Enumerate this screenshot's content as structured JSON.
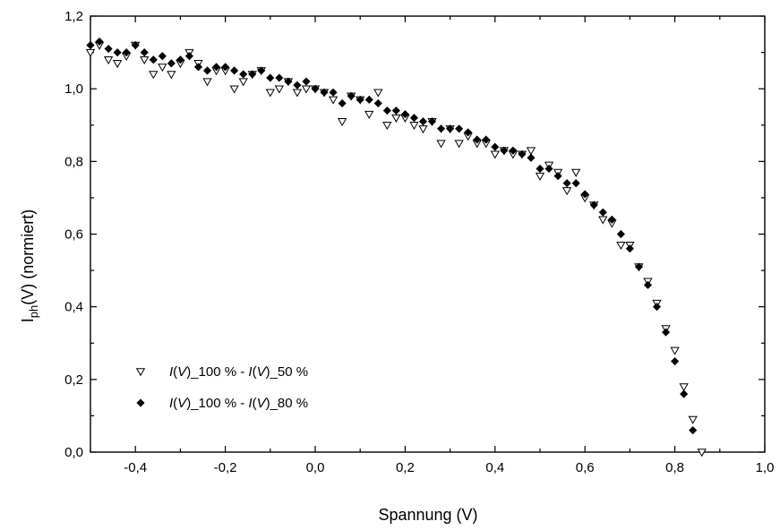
{
  "chart_data": {
    "type": "scatter",
    "title": "",
    "xlabel": "Spannung (V)",
    "ylabel": {
      "main": "I",
      "sub": "ph",
      "rest": "(V) (normiert)"
    },
    "xlim": [
      -0.5,
      1.0
    ],
    "ylim": [
      0.0,
      1.2
    ],
    "xticks": [
      -0.4,
      -0.2,
      0.0,
      0.2,
      0.4,
      0.6,
      0.8,
      1.0
    ],
    "yticks": [
      0.0,
      0.2,
      0.4,
      0.6,
      0.8,
      1.0,
      1.2
    ],
    "xtick_labels": [
      "-0,4",
      "-0,2",
      "0,0",
      "0,2",
      "0,4",
      "0,6",
      "0,8",
      "1,0"
    ],
    "ytick_labels": [
      "0,0",
      "0,2",
      "0,4",
      "0,6",
      "0,8",
      "1,0",
      "1,2"
    ],
    "grid": false,
    "legend_position": "lower-left",
    "series": [
      {
        "name": "I(V)_100 % - I(V)_50 %",
        "legend_parts": [
          {
            "text": "I",
            "italic": true
          },
          {
            "text": "(",
            "italic": false
          },
          {
            "text": "V",
            "italic": true
          },
          {
            "text": ")_100 % - ",
            "italic": false
          },
          {
            "text": "I",
            "italic": true
          },
          {
            "text": "(",
            "italic": false
          },
          {
            "text": "V",
            "italic": true
          },
          {
            "text": ")_50 %",
            "italic": false
          }
        ],
        "marker": "triangle-down-open",
        "color": "#000000",
        "points": [
          [
            -0.5,
            1.1
          ],
          [
            -0.48,
            1.12
          ],
          [
            -0.46,
            1.08
          ],
          [
            -0.44,
            1.07
          ],
          [
            -0.42,
            1.09
          ],
          [
            -0.4,
            1.12
          ],
          [
            -0.38,
            1.08
          ],
          [
            -0.36,
            1.04
          ],
          [
            -0.34,
            1.06
          ],
          [
            -0.32,
            1.04
          ],
          [
            -0.3,
            1.07
          ],
          [
            -0.28,
            1.1
          ],
          [
            -0.26,
            1.07
          ],
          [
            -0.24,
            1.02
          ],
          [
            -0.22,
            1.05
          ],
          [
            -0.2,
            1.05
          ],
          [
            -0.18,
            1.0
          ],
          [
            -0.16,
            1.02
          ],
          [
            -0.14,
            1.04
          ],
          [
            -0.12,
            1.05
          ],
          [
            -0.1,
            0.99
          ],
          [
            -0.08,
            1.0
          ],
          [
            -0.06,
            1.02
          ],
          [
            -0.04,
            0.99
          ],
          [
            -0.02,
            1.0
          ],
          [
            0.0,
            1.0
          ],
          [
            0.02,
            0.99
          ],
          [
            0.04,
            0.97
          ],
          [
            0.06,
            0.91
          ],
          [
            0.08,
            0.98
          ],
          [
            0.1,
            0.97
          ],
          [
            0.12,
            0.93
          ],
          [
            0.14,
            0.99
          ],
          [
            0.16,
            0.9
          ],
          [
            0.18,
            0.92
          ],
          [
            0.2,
            0.92
          ],
          [
            0.22,
            0.9
          ],
          [
            0.24,
            0.89
          ],
          [
            0.26,
            0.91
          ],
          [
            0.28,
            0.85
          ],
          [
            0.3,
            0.89
          ],
          [
            0.32,
            0.85
          ],
          [
            0.34,
            0.87
          ],
          [
            0.36,
            0.85
          ],
          [
            0.38,
            0.85
          ],
          [
            0.4,
            0.82
          ],
          [
            0.42,
            0.83
          ],
          [
            0.44,
            0.82
          ],
          [
            0.46,
            0.82
          ],
          [
            0.48,
            0.83
          ],
          [
            0.5,
            0.76
          ],
          [
            0.52,
            0.79
          ],
          [
            0.54,
            0.77
          ],
          [
            0.56,
            0.72
          ],
          [
            0.58,
            0.77
          ],
          [
            0.6,
            0.7
          ],
          [
            0.62,
            0.68
          ],
          [
            0.64,
            0.64
          ],
          [
            0.66,
            0.63
          ],
          [
            0.68,
            0.57
          ],
          [
            0.7,
            0.57
          ],
          [
            0.72,
            0.51
          ],
          [
            0.74,
            0.47
          ],
          [
            0.76,
            0.41
          ],
          [
            0.78,
            0.34
          ],
          [
            0.8,
            0.28
          ],
          [
            0.82,
            0.18
          ],
          [
            0.84,
            0.09
          ],
          [
            0.86,
            0.0
          ]
        ]
      },
      {
        "name": "I(V)_100 % - I(V)_80 %",
        "legend_parts": [
          {
            "text": "I",
            "italic": true
          },
          {
            "text": "(",
            "italic": false
          },
          {
            "text": "V",
            "italic": true
          },
          {
            "text": ")_100 % - ",
            "italic": false
          },
          {
            "text": "I",
            "italic": true
          },
          {
            "text": "(",
            "italic": false
          },
          {
            "text": "V",
            "italic": true
          },
          {
            "text": ")_80 %",
            "italic": false
          }
        ],
        "marker": "diamond-filled",
        "color": "#000000",
        "points": [
          [
            -0.5,
            1.12
          ],
          [
            -0.48,
            1.13
          ],
          [
            -0.46,
            1.11
          ],
          [
            -0.44,
            1.1
          ],
          [
            -0.42,
            1.1
          ],
          [
            -0.4,
            1.12
          ],
          [
            -0.38,
            1.1
          ],
          [
            -0.36,
            1.08
          ],
          [
            -0.34,
            1.09
          ],
          [
            -0.32,
            1.07
          ],
          [
            -0.3,
            1.08
          ],
          [
            -0.28,
            1.09
          ],
          [
            -0.26,
            1.06
          ],
          [
            -0.24,
            1.05
          ],
          [
            -0.22,
            1.06
          ],
          [
            -0.2,
            1.06
          ],
          [
            -0.18,
            1.05
          ],
          [
            -0.16,
            1.04
          ],
          [
            -0.14,
            1.04
          ],
          [
            -0.12,
            1.05
          ],
          [
            -0.1,
            1.03
          ],
          [
            -0.08,
            1.03
          ],
          [
            -0.06,
            1.02
          ],
          [
            -0.04,
            1.01
          ],
          [
            -0.02,
            1.02
          ],
          [
            0.0,
            1.0
          ],
          [
            0.02,
            0.99
          ],
          [
            0.04,
            0.99
          ],
          [
            0.06,
            0.96
          ],
          [
            0.08,
            0.98
          ],
          [
            0.1,
            0.97
          ],
          [
            0.12,
            0.97
          ],
          [
            0.14,
            0.96
          ],
          [
            0.16,
            0.94
          ],
          [
            0.18,
            0.94
          ],
          [
            0.2,
            0.93
          ],
          [
            0.22,
            0.92
          ],
          [
            0.24,
            0.91
          ],
          [
            0.26,
            0.91
          ],
          [
            0.28,
            0.89
          ],
          [
            0.3,
            0.89
          ],
          [
            0.32,
            0.89
          ],
          [
            0.34,
            0.88
          ],
          [
            0.36,
            0.86
          ],
          [
            0.38,
            0.86
          ],
          [
            0.4,
            0.84
          ],
          [
            0.42,
            0.83
          ],
          [
            0.44,
            0.83
          ],
          [
            0.46,
            0.82
          ],
          [
            0.48,
            0.81
          ],
          [
            0.5,
            0.78
          ],
          [
            0.52,
            0.78
          ],
          [
            0.54,
            0.76
          ],
          [
            0.56,
            0.74
          ],
          [
            0.58,
            0.74
          ],
          [
            0.6,
            0.71
          ],
          [
            0.62,
            0.68
          ],
          [
            0.64,
            0.66
          ],
          [
            0.66,
            0.64
          ],
          [
            0.68,
            0.6
          ],
          [
            0.7,
            0.56
          ],
          [
            0.72,
            0.51
          ],
          [
            0.74,
            0.46
          ],
          [
            0.76,
            0.4
          ],
          [
            0.78,
            0.33
          ],
          [
            0.8,
            0.25
          ],
          [
            0.82,
            0.16
          ],
          [
            0.84,
            0.06
          ]
        ]
      }
    ]
  }
}
